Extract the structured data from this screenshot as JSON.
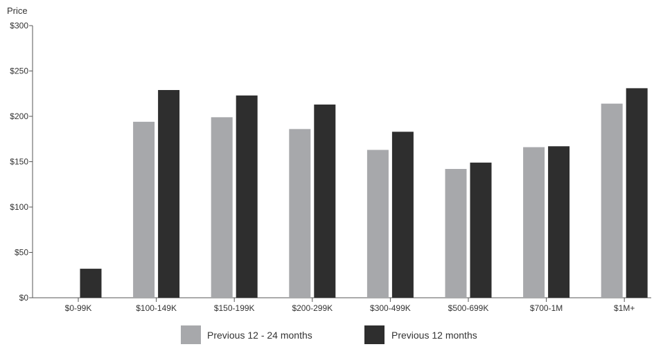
{
  "chart_data": {
    "type": "bar",
    "title": "",
    "xlabel": "",
    "ylabel": "Price",
    "ylim": [
      0,
      300
    ],
    "yticks": [
      0,
      50,
      100,
      150,
      200,
      250,
      300
    ],
    "ytick_labels": [
      "$0",
      "$50",
      "$100",
      "$150",
      "$200",
      "$250",
      "$300"
    ],
    "grid": false,
    "legend_position": "bottom",
    "categories": [
      "$0-99K",
      "$100-149K",
      "$150-199K",
      "$200-299K",
      "$300-499K",
      "$500-699K",
      "$700-1M",
      "$1M+"
    ],
    "series": [
      {
        "name": "Previous 12 - 24 months",
        "color": "#a7a8ab",
        "values": [
          null,
          194,
          199,
          186,
          163,
          142,
          166,
          214
        ]
      },
      {
        "name": "Previous 12 months",
        "color": "#2e2e2e",
        "values": [
          32,
          229,
          223,
          213,
          183,
          149,
          167,
          231
        ]
      }
    ]
  }
}
